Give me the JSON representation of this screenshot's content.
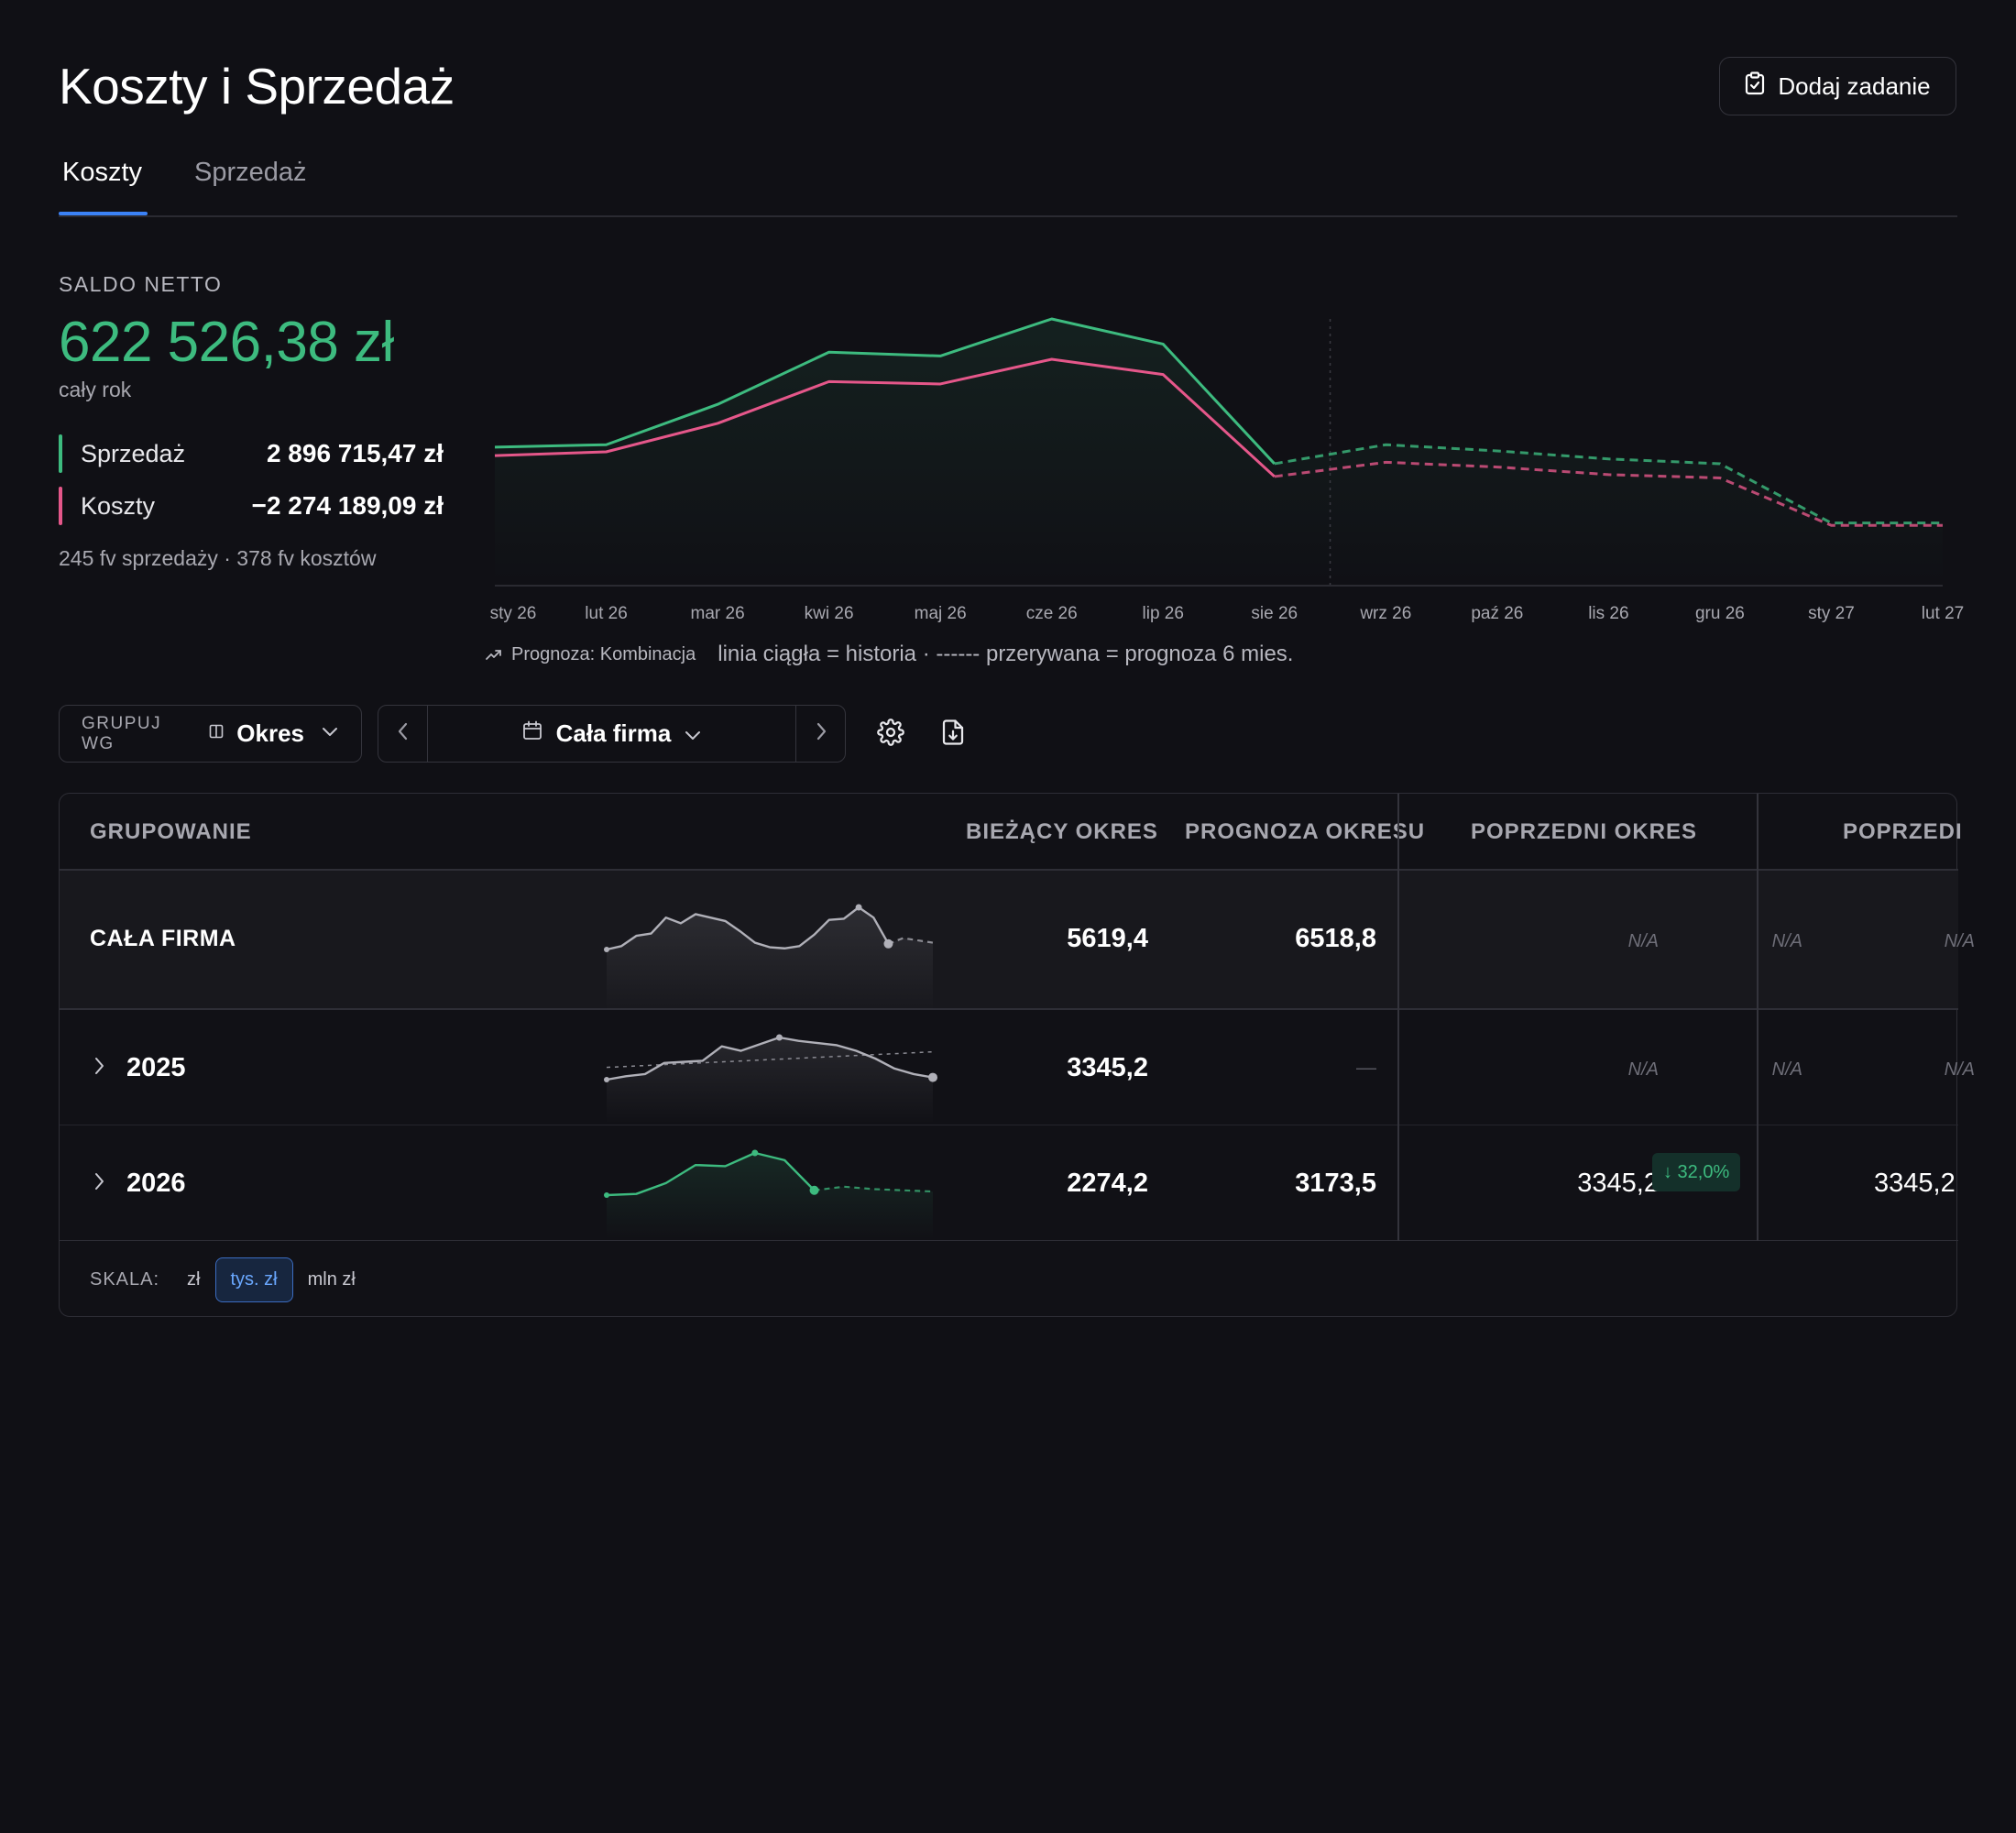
{
  "header": {
    "title": "Koszty i Sprzedaż",
    "add_task_label": "Dodaj zadanie",
    "add_task_icon": "clipboard-check-icon"
  },
  "tabs": [
    {
      "label": "Koszty",
      "active": true
    },
    {
      "label": "Sprzedaż",
      "active": false
    }
  ],
  "summary": {
    "saldo_label": "SALDO NETTO",
    "saldo_value": "622 526,38 zł",
    "saldo_sub": "cały rok",
    "sales_label": "Sprzedaż",
    "sales_value": "2 896 715,47 zł",
    "costs_label": "Koszty",
    "costs_value": "−2 274 189,09 zł",
    "invoice_counts": "245 fv sprzedaży · 378 fv kosztów",
    "colors": {
      "saldo": "#3dbb7f",
      "sales": "#3dbb7f",
      "costs": "#e5578a"
    }
  },
  "chart_note": {
    "forecast_label": "Prognoza: Kombinacja",
    "legend_text": "linia ciągła = historia · ------ przerywana = prognoza 6 mies."
  },
  "chart_data": {
    "type": "line",
    "categories": [
      "sty 26",
      "lut 26",
      "mar 26",
      "kwi 26",
      "maj 26",
      "cze 26",
      "lip 26",
      "sie 26",
      "wrz 26",
      "paź 26",
      "lis 26",
      "gru 26",
      "sty 27",
      "lut 27"
    ],
    "series": [
      {
        "name": "Sprzedaż",
        "color": "#3dbb7f",
        "values": [
          290,
          295,
          380,
          490,
          482,
          560,
          507,
          255,
          295,
          282,
          265,
          255,
          130,
          130
        ]
      },
      {
        "name": "Koszty",
        "color": "#e5578a",
        "values": [
          272,
          280,
          340,
          428,
          423,
          475,
          443,
          228,
          258,
          248,
          232,
          225,
          125,
          125
        ]
      }
    ],
    "history_points": 8,
    "forecast_start_index": 7,
    "forecast_divider_between": [
      "sie 26",
      "wrz 26"
    ],
    "ylim": [
      0,
      560
    ],
    "grid": false
  },
  "toolbar": {
    "groupby_label": "GRUPUJ WG",
    "groupby_value": "Okres",
    "period_value": "Cała firma"
  },
  "table": {
    "headers": {
      "grouping": "GRUPOWANIE",
      "current": "BIEŻĄCY OKRES",
      "forecast": "PROGNOZA OKRESU",
      "previous": "POPRZEDNI OKRES",
      "previous2": "POPRZEDI"
    },
    "rows": [
      {
        "label": "CAŁA FIRMA",
        "current": "5619,4",
        "forecast": "6518,8",
        "prev": "N/A",
        "prev_change": "N/A",
        "prev2": "N/A",
        "spark": {
          "color": "#b0b0b8",
          "values": [
            0,
            3,
            12,
            14,
            28,
            23,
            31,
            28,
            25,
            16,
            6,
            2,
            1,
            3,
            13,
            26,
            27,
            37,
            28,
            5
          ],
          "forecast": [
            10,
            8,
            6
          ]
        }
      },
      {
        "label": "2025",
        "current": "3345,2",
        "forecast": "—",
        "prev": "N/A",
        "prev_change": "N/A",
        "prev2": "N/A",
        "spark": {
          "color": "#b0b0b8",
          "values": [
            10,
            13,
            15,
            25,
            26,
            27,
            40,
            36,
            42,
            48,
            45,
            43,
            41,
            36,
            29,
            20,
            15,
            12
          ],
          "forecast": []
        }
      },
      {
        "label": "2026",
        "current": "2274,2",
        "forecast": "3173,5",
        "prev": "3345,2",
        "prev_change": "↓ 32,0%",
        "prev2": "3345,2",
        "spark": {
          "color": "#3dbb7f",
          "values": [
            0,
            1,
            10,
            25,
            24,
            35,
            29,
            4
          ],
          "forecast": [
            7,
            5,
            4,
            3
          ]
        }
      }
    ]
  },
  "scale": {
    "label": "SKALA:",
    "options": [
      "zł",
      "tys. zł",
      "mln zł"
    ],
    "active": "tys. zł"
  }
}
